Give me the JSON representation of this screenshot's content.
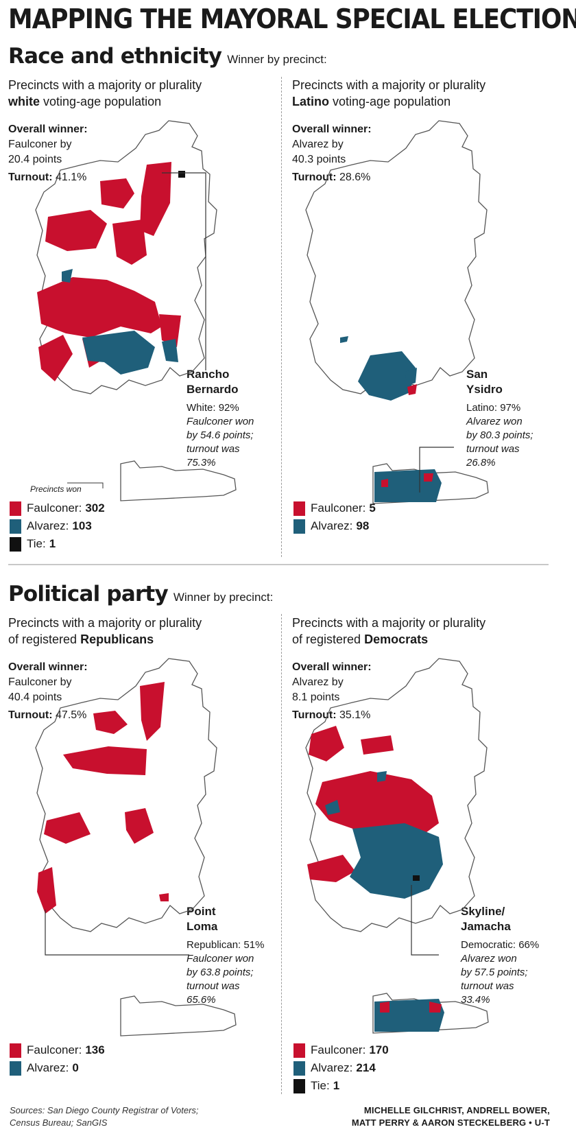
{
  "title": "MAPPING THE MAYORAL SPECIAL ELECTION",
  "sections": [
    {
      "title": "Race and ethnicity",
      "subtitle": "Winner by precinct:"
    },
    {
      "title": "Political party",
      "subtitle": "Winner by precinct:"
    }
  ],
  "panels": [
    {
      "desc_pre": "Precincts with a majority or plurality",
      "desc_bold": "white",
      "desc_post": "voting-age population",
      "overall_label": "Overall winner:",
      "overall_text": "Faulconer by\n20.4 points",
      "turnout_label": "Turnout:",
      "turnout_value": "41.1%",
      "callout_name": "Rancho\nBernardo",
      "callout_stat_label": "White:",
      "callout_stat_value": "92%",
      "callout_note": "Faulconer won\nby 54.6 points;\nturnout was\n75.3%",
      "precincts_won_label": "Precincts won",
      "legend": [
        {
          "name": "Faulconer:",
          "count": "302",
          "color": "#c8102e"
        },
        {
          "name": "Alvarez:",
          "count": "103",
          "color": "#1f5f7a"
        },
        {
          "name": "Tie:",
          "count": "1",
          "color": "#111111"
        }
      ]
    },
    {
      "desc_pre": "Precincts with a majority or plurality",
      "desc_bold": "Latino",
      "desc_post": "voting-age population",
      "overall_label": "Overall winner:",
      "overall_text": "Alvarez by\n40.3 points",
      "turnout_label": "Turnout:",
      "turnout_value": "28.6%",
      "callout_name": "San\nYsidro",
      "callout_stat_label": "Latino:",
      "callout_stat_value": "97%",
      "callout_note": "Alvarez won\nby 80.3 points;\nturnout was\n26.8%",
      "legend": [
        {
          "name": "Faulconer:",
          "count": "5",
          "color": "#c8102e"
        },
        {
          "name": "Alvarez:",
          "count": "98",
          "color": "#1f5f7a"
        }
      ]
    },
    {
      "desc_pre": "Precincts with a majority or plurality",
      "desc_mid": "of registered",
      "desc_bold": "Republicans",
      "overall_label": "Overall winner:",
      "overall_text": "Faulconer by\n40.4 points",
      "turnout_label": "Turnout:",
      "turnout_value": "47.5%",
      "callout_name": "Point\nLoma",
      "callout_stat_label": "Republican:",
      "callout_stat_value": "51%",
      "callout_note": "Faulconer won\nby 63.8 points;\nturnout was\n65.6%",
      "legend": [
        {
          "name": "Faulconer:",
          "count": "136",
          "color": "#c8102e"
        },
        {
          "name": "Alvarez:",
          "count": "0",
          "color": "#1f5f7a"
        }
      ]
    },
    {
      "desc_pre": "Precincts with a majority or plurality",
      "desc_mid": "of registered",
      "desc_bold": "Democrats",
      "overall_label": "Overall winner:",
      "overall_text": "Alvarez by\n8.1 points",
      "turnout_label": "Turnout:",
      "turnout_value": "35.1%",
      "callout_name": "Skyline/\nJamacha",
      "callout_stat_label": "Democratic:",
      "callout_stat_value": "66%",
      "callout_note": "Alvarez won\nby 57.5 points;\nturnout was\n33.4%",
      "legend": [
        {
          "name": "Faulconer:",
          "count": "170",
          "color": "#c8102e"
        },
        {
          "name": "Alvarez:",
          "count": "214",
          "color": "#1f5f7a"
        },
        {
          "name": "Tie:",
          "count": "1",
          "color": "#111111"
        }
      ]
    }
  ],
  "sources": "Sources: San Diego County Registrar of Voters;\nCensus Bureau; SanGIS",
  "credit_line1": "MICHELLE GILCHRIST, ANDRELL BOWER,",
  "credit_line2": "MATT PERRY & AARON STECKELBERG",
  "credit_org": "U-T",
  "colors": {
    "faulconer": "#c8102e",
    "alvarez": "#1f5f7a",
    "tie": "#111111",
    "outline": "#555555"
  }
}
